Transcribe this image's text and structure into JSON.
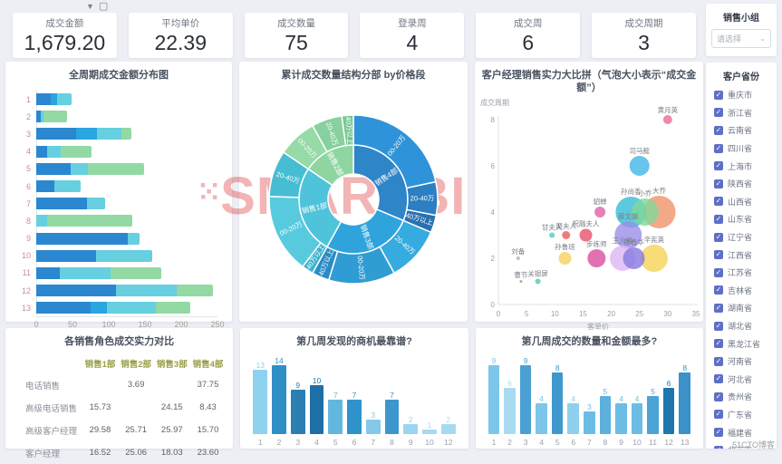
{
  "toolbar": {
    "filter_icon": "funnel-filter",
    "component_icon": "component-box"
  },
  "kpis": [
    {
      "label": "成交金额",
      "value": "1,679.20"
    },
    {
      "label": "平均单价",
      "value": "22.39"
    },
    {
      "label": "成交数量",
      "value": "75"
    },
    {
      "label": "登录周",
      "value": "4"
    },
    {
      "label": "成交周",
      "value": "6"
    },
    {
      "label": "成交周期",
      "value": "3"
    }
  ],
  "sidebar": {
    "group_title": "销售小组",
    "select_placeholder": "请选择",
    "province_title": "客户省份",
    "provinces": [
      "重庆市",
      "浙江省",
      "云南省",
      "四川省",
      "上海市",
      "陕西省",
      "山西省",
      "山东省",
      "辽宁省",
      "江西省",
      "江苏省",
      "吉林省",
      "湖南省",
      "湖北省",
      "黑龙江省",
      "河南省",
      "河北省",
      "贵州省",
      "广东省",
      "福建省",
      "北京市"
    ]
  },
  "watermark": {
    "prefix": "⁙",
    "main": "SMARTBI",
    "footer": "51CTO博客"
  },
  "chart_data": [
    {
      "type": "bar",
      "orientation": "horizontal-stacked",
      "title": "全周期成交金额分布图",
      "categories": [
        "1",
        "2",
        "3",
        "4",
        "5",
        "6",
        "7",
        "8",
        "9",
        "10",
        "11",
        "12",
        "13"
      ],
      "series": [
        {
          "name": "销售1部",
          "color": "#2b87cf",
          "values": [
            20,
            6,
            55,
            15,
            47,
            25,
            70,
            0,
            126,
            83,
            32,
            110,
            75
          ]
        },
        {
          "name": "销售2部",
          "color": "#29a6df",
          "values": [
            9,
            0,
            29,
            0,
            0,
            0,
            0,
            0,
            0,
            0,
            0,
            0,
            23
          ]
        },
        {
          "name": "销售3部",
          "color": "#66cfe0",
          "values": [
            20,
            4,
            33,
            19,
            24,
            36,
            25,
            15,
            16,
            77,
            71,
            84,
            67
          ]
        },
        {
          "name": "销售4部",
          "color": "#93d9a4",
          "values": [
            0,
            32,
            14,
            42,
            78,
            0,
            0,
            117,
            0,
            0,
            70,
            50,
            47
          ]
        }
      ],
      "xlim": [
        0,
        250
      ],
      "xticks": [
        "0",
        "50",
        "100",
        "150",
        "200",
        "250"
      ]
    },
    {
      "type": "pie",
      "variant": "sunburst",
      "title": "累计成交数量结构分部 by价格段",
      "branches": [
        {
          "name": "销售4部",
          "color": "#2e86c9",
          "start": 0,
          "end": 113,
          "children": [
            {
              "name": "00-20万",
              "start": 0,
              "end": 78,
              "color": "#2e93d9"
            },
            {
              "name": "20-40万",
              "start": 78,
              "end": 101,
              "color": "#2b7fc2"
            },
            {
              "name": "40万以上",
              "start": 101,
              "end": 113,
              "color": "#2a70b2"
            }
          ]
        },
        {
          "name": "销售3部",
          "color": "#2fa3dc",
          "start": 113,
          "end": 209,
          "children": [
            {
              "name": "20-40万",
              "start": 113,
              "end": 151,
              "color": "#35abdf"
            },
            {
              "name": "00-20万",
              "start": 151,
              "end": 197,
              "color": "#2f9dd4"
            },
            {
              "name": "40万以上",
              "start": 197,
              "end": 209,
              "color": "#2a8cc4"
            }
          ]
        },
        {
          "name": "销售1部",
          "color": "#4fc3da",
          "start": 209,
          "end": 304,
          "children": [
            {
              "name": "40万以上",
              "start": 209,
              "end": 217,
              "color": "#3eb2cb"
            },
            {
              "name": "00-20万",
              "start": 217,
              "end": 272,
              "color": "#58cade"
            },
            {
              "name": "20-40万",
              "start": 272,
              "end": 304,
              "color": "#47bdd3"
            }
          ]
        },
        {
          "name": "销售2部",
          "color": "#8ed5a2",
          "start": 304,
          "end": 360,
          "children": [
            {
              "name": "00-20万",
              "start": 304,
              "end": 331,
              "color": "#95daa7"
            },
            {
              "name": "20-40万",
              "start": 331,
              "end": 352,
              "color": "#86d19d"
            },
            {
              "name": "40万以上",
              "start": 352,
              "end": 360,
              "color": "#79c895"
            }
          ]
        }
      ]
    },
    {
      "type": "scatter",
      "variant": "bubble",
      "title": "客户经理销售实力大比拼（气泡大小表示“成交金额”）",
      "xlabel": "客单价",
      "ylabel": "成交周期",
      "xlim": [
        0,
        35
      ],
      "ylim": [
        0,
        8
      ],
      "xticks": [
        0,
        5,
        10,
        15,
        20,
        25,
        30,
        35
      ],
      "yticks": [
        0,
        2,
        4,
        6,
        8
      ],
      "points": [
        {
          "name": "黄月英",
          "x": 30,
          "y": 8,
          "r": 5,
          "color": "#ec6a93"
        },
        {
          "name": "司马懿",
          "x": 25,
          "y": 6,
          "r": 11,
          "color": "#41b7e9"
        },
        {
          "name": "貂蝉",
          "x": 18,
          "y": 4,
          "r": 6,
          "color": "#e060a8"
        },
        {
          "name": "孙尚香",
          "x": 23.5,
          "y": 4,
          "r": 17,
          "color": "#35bcd4"
        },
        {
          "name": "小乔",
          "x": 26,
          "y": 4,
          "r": 15,
          "color": "#7fd89a"
        },
        {
          "name": "大乔",
          "x": 28.5,
          "y": 4,
          "r": 18,
          "color": "#f0926a"
        },
        {
          "name": "甘夫人",
          "x": 9.5,
          "y": 3,
          "r": 3,
          "color": "#4ecdc4"
        },
        {
          "name": "糜夫人",
          "x": 12,
          "y": 3,
          "r": 4.5,
          "color": "#e85d5d"
        },
        {
          "name": "祝融夫人",
          "x": 15.5,
          "y": 3,
          "r": 7,
          "color": "#e8506e"
        },
        {
          "name": "蔡文姬",
          "x": 23,
          "y": 3,
          "r": 15,
          "color": "#9a8fe8"
        },
        {
          "name": "刘备",
          "x": 3.5,
          "y": 2,
          "r": 2,
          "color": "#b0b0b0"
        },
        {
          "name": "孙鲁班",
          "x": 11.8,
          "y": 2,
          "r": 7,
          "color": "#f5d15c"
        },
        {
          "name": "步练师",
          "x": 17.4,
          "y": 2,
          "r": 10,
          "color": "#d84f9e"
        },
        {
          "name": "王元姬",
          "x": 22,
          "y": 2,
          "r": 14,
          "color": "#dcb6f2"
        },
        {
          "name": "张春华",
          "x": 24,
          "y": 2,
          "r": 12,
          "color": "#8678e0"
        },
        {
          "name": "辛宪英",
          "x": 27.6,
          "y": 2,
          "r": 15,
          "color": "#f5d355"
        },
        {
          "name": "曹节",
          "x": 4,
          "y": 1,
          "r": 1.5,
          "color": "#999999"
        },
        {
          "name": "关银屏",
          "x": 7,
          "y": 1,
          "r": 3,
          "color": "#52c5b8"
        }
      ]
    },
    {
      "type": "table",
      "title": "各销售角色成交实力对比",
      "columns": [
        "销售1部",
        "销售2部",
        "销售3部",
        "销售4部"
      ],
      "rows": [
        {
          "label": "电话销售",
          "values": [
            "",
            "3.69",
            "",
            "37.75"
          ]
        },
        {
          "label": "高级电话销售",
          "values": [
            "15.73",
            "",
            "24.15",
            "8.43"
          ]
        },
        {
          "label": "高级客户经理",
          "values": [
            "29.58",
            "25.71",
            "25.97",
            "15.70"
          ]
        },
        {
          "label": "客户经理",
          "values": [
            "16.52",
            "25.06",
            "18.03",
            "23.60"
          ]
        }
      ]
    },
    {
      "type": "bar",
      "title": "第几周发现的商机最靠谱?",
      "categories": [
        "1",
        "2",
        "3",
        "4",
        "5",
        "6",
        "7",
        "8",
        "9",
        "10",
        "12"
      ],
      "values": [
        13,
        14,
        9,
        10,
        7,
        7,
        3,
        7,
        2,
        1,
        2
      ],
      "colors": [
        "#8ed2f0",
        "#2e8fc7",
        "#2b7fb3",
        "#1e6fa5",
        "#62b7de",
        "#2e93cb",
        "#86c8ea",
        "#3d97cc",
        "#9bd5f0",
        "#a5daf2",
        "#a5daf2"
      ],
      "ymax": 14
    },
    {
      "type": "bar",
      "title": "第几周成交的数量和金额最多?",
      "categories": [
        "1",
        "2",
        "3",
        "4",
        "5",
        "6",
        "7",
        "8",
        "9",
        "10",
        "11",
        "12",
        "13"
      ],
      "values": [
        9,
        6,
        9,
        4,
        8,
        4,
        3,
        5,
        4,
        4,
        5,
        6,
        8
      ],
      "colors": [
        "#7cc6ea",
        "#a8dbf2",
        "#4ba0d3",
        "#7cc6ea",
        "#3f98cd",
        "#8fd0ee",
        "#6cbde5",
        "#5bb1dc",
        "#6cbde5",
        "#6cbde5",
        "#4ba3d6",
        "#1e76ae",
        "#3a92c8"
      ],
      "ymax": 9
    }
  ]
}
